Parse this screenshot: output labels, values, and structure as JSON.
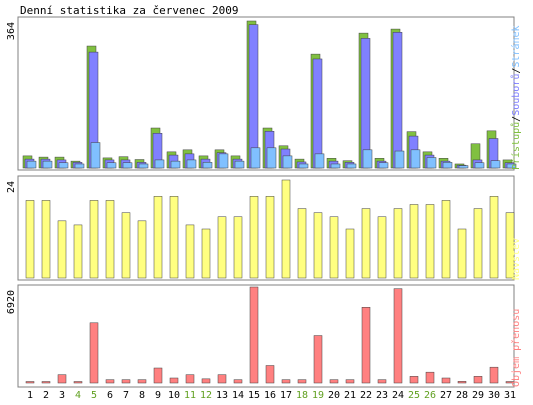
{
  "chart_data": {
    "type": "bar",
    "title": "Denní statistika za červenec 2009",
    "categories": [
      "1",
      "2",
      "3",
      "4",
      "5",
      "6",
      "7",
      "8",
      "9",
      "10",
      "11",
      "12",
      "13",
      "14",
      "15",
      "16",
      "17",
      "18",
      "19",
      "20",
      "21",
      "22",
      "23",
      "24",
      "25",
      "26",
      "27",
      "28",
      "29",
      "30",
      "31"
    ],
    "weekend_days": [
      "4",
      "5",
      "11",
      "12",
      "18",
      "19",
      "25",
      "26"
    ],
    "panels": [
      {
        "name": "traffic",
        "ymax_label": "364",
        "ylim": [
          0,
          364
        ],
        "legend": [
          "Přístupů",
          "Souborů",
          "Stránek"
        ],
        "legend_separator": "/",
        "series": [
          {
            "name": "Přístupů",
            "color": "#80c040",
            "values": [
              30,
              27,
              27,
              17,
              302,
              25,
              28,
              21,
              99,
              40,
              45,
              30,
              45,
              30,
              364,
              99,
              55,
              22,
              282,
              24,
              18,
              334,
              24,
              344,
              90,
              40,
              24,
              10,
              60,
              92,
              20
            ]
          },
          {
            "name": "Souborů",
            "color": "#8080ff",
            "values": [
              22,
              22,
              20,
              14,
              287,
              20,
              20,
              14,
              86,
              32,
              35,
              22,
              38,
              22,
              355,
              91,
              47,
              15,
              270,
              17,
              14,
              321,
              17,
              336,
              79,
              32,
              17,
              7,
              20,
              73,
              13
            ]
          },
          {
            "name": "Stránek",
            "color": "#80c0ff",
            "values": [
              17,
              17,
              13,
              10,
              63,
              13,
              13,
              10,
              20,
              17,
              20,
              14,
              35,
              17,
              50,
              50,
              30,
              10,
              35,
              10,
              10,
              45,
              13,
              42,
              45,
              26,
              14,
              6,
              13,
              18,
              10
            ]
          }
        ]
      },
      {
        "name": "visits",
        "ymax_label": "24",
        "ylim": [
          0,
          24
        ],
        "legend": [
          "Návštěv"
        ],
        "series": [
          {
            "name": "Návštěv",
            "color": "#ffff80",
            "values": [
              19,
              19,
              14,
              13,
              19,
              19,
              16,
              14,
              20,
              20,
              13,
              12,
              15,
              15,
              20,
              20,
              24,
              17,
              16,
              15,
              12,
              17,
              15,
              17,
              18,
              18,
              19,
              12,
              17,
              20,
              16
            ]
          }
        ]
      },
      {
        "name": "volume",
        "ymax_label": "6920",
        "ylim": [
          0,
          6920
        ],
        "legend": [
          "Objem přenosu"
        ],
        "series": [
          {
            "name": "Objem přenosu",
            "color": "#ff8080",
            "values": [
              60,
              60,
              600,
              60,
              4340,
              240,
              240,
              240,
              1080,
              360,
              600,
              300,
              600,
              240,
              6920,
              1260,
              240,
              240,
              3420,
              240,
              240,
              5460,
              240,
              6800,
              480,
              780,
              360,
              120,
              480,
              1140,
              60
            ]
          }
        ]
      }
    ],
    "colors": {
      "frame": "#808080",
      "label_weekday": "#000000",
      "label_weekend": "#60a020"
    }
  }
}
